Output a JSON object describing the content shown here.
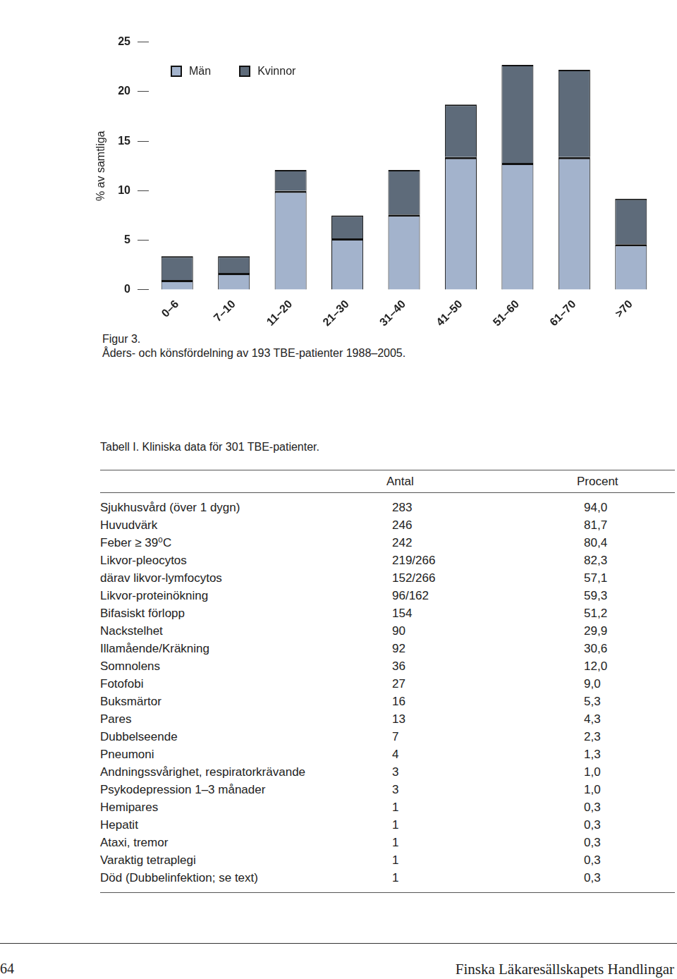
{
  "chart_data": {
    "type": "bar",
    "stacked": true,
    "y_label": "% av samtliga",
    "categories": [
      "0–6",
      "7–10",
      "11–20",
      "21–30",
      "31–40",
      "41–50",
      "51–60",
      "61–70",
      ">70"
    ],
    "series": [
      {
        "name": "Män",
        "color": "#a3b3cc",
        "values": [
          1.0,
          1.7,
          10.0,
          5.2,
          7.6,
          13.4,
          12.8,
          13.4,
          4.6
        ]
      },
      {
        "name": "Kvinnor",
        "color": "#5e6b7a",
        "values": [
          2.4,
          1.7,
          2.1,
          2.3,
          4.5,
          5.3,
          9.9,
          8.8,
          4.6
        ]
      }
    ],
    "ylim": [
      0,
      25
    ],
    "yticks": [
      0,
      5,
      10,
      15,
      20,
      25
    ],
    "grid": false,
    "legend": "upper left"
  },
  "figure_caption": {
    "label": "Figur 3.",
    "text": "Åders- och könsfördelning av 193 TBE-patienter 1988–2005."
  },
  "table": {
    "title": "Tabell I. Kliniska data för 301 TBE-patienter.",
    "header": [
      "Antal",
      "Procent"
    ],
    "rows": [
      [
        "Sjukhusvård (över 1 dygn)",
        "283",
        "94,0"
      ],
      [
        "Huvudvärk",
        "246",
        "81,7"
      ],
      [
        "Feber ≥ 39⁰C",
        "242",
        "80,4"
      ],
      [
        "Likvor-pleocytos",
        "219/266",
        "82,3"
      ],
      [
        "därav likvor-lymfocytos",
        "152/266",
        "57,1"
      ],
      [
        "Likvor-proteinökning",
        "96/162",
        "59,3"
      ],
      [
        "Bifasiskt förlopp",
        "154",
        "51,2"
      ],
      [
        "Nackstelhet",
        "90",
        "29,9"
      ],
      [
        "Illamående/Kräkning",
        "92",
        "30,6"
      ],
      [
        "Somnolens",
        "36",
        "12,0"
      ],
      [
        "Fotofobi",
        "27",
        "9,0"
      ],
      [
        "Buksmärtor",
        "16",
        "5,3"
      ],
      [
        "Pares",
        "13",
        "4,3"
      ],
      [
        "Dubbelseende",
        "7",
        "2,3"
      ],
      [
        "Pneumoni",
        "4",
        "1,3"
      ],
      [
        "Andningssvårighet, respiratorkrävande",
        "3",
        "1,0"
      ],
      [
        "Psykodepression 1–3 månader",
        "3",
        "1,0"
      ],
      [
        "Hemipares",
        "1",
        "0,3"
      ],
      [
        "Hepatit",
        "1",
        "0,3"
      ],
      [
        "Ataxi, tremor",
        "1",
        "0,3"
      ],
      [
        "Varaktig tetraplegi",
        "1",
        "0,3"
      ],
      [
        "Död (Dubbelinfektion; se text)",
        "1",
        "0,3"
      ]
    ]
  },
  "footer": {
    "page": "64",
    "journal": "Finska Läkaresällskapets Handlingar"
  }
}
